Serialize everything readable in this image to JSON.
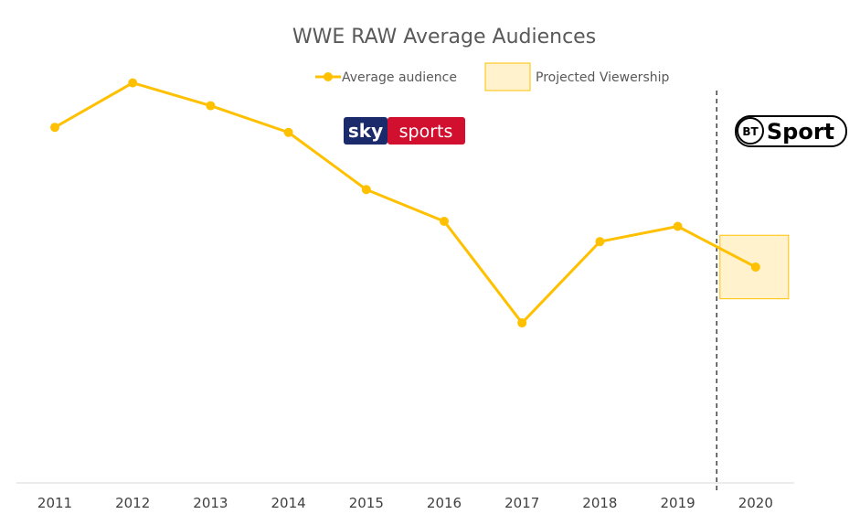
{
  "chart_data": {
    "type": "line",
    "title": "WWE RAW Average Audiences",
    "xlabel": "",
    "ylabel": "",
    "categories": [
      "2011",
      "2012",
      "2013",
      "2014",
      "2015",
      "2016",
      "2017",
      "2018",
      "2019",
      "2020"
    ],
    "series": [
      {
        "name": "Average audience",
        "values": [
          280,
          315,
          297,
          276,
          231,
          206,
          126,
          190,
          202,
          170
        ],
        "color": "#FFC000"
      }
    ],
    "projection": {
      "name": "Projected Viewership",
      "category": "2020",
      "range": [
        145,
        195
      ],
      "fill": "#FFF2CC",
      "stroke": "#FFC000"
    },
    "ylim": [
      0,
      350
    ],
    "y_axis_visible": false,
    "grid": false,
    "legend_position": "top-center",
    "divider_between": [
      "2019",
      "2020"
    ],
    "logos": [
      {
        "icon": "sky-sports-logo",
        "text_left": "sky",
        "text_right": "sports",
        "color_left": "#1b2a6b",
        "color_right": "#d0102e"
      },
      {
        "icon": "bt-sport-logo",
        "text_badge": "BT",
        "text_main": "Sport",
        "color": "#000000"
      }
    ]
  }
}
